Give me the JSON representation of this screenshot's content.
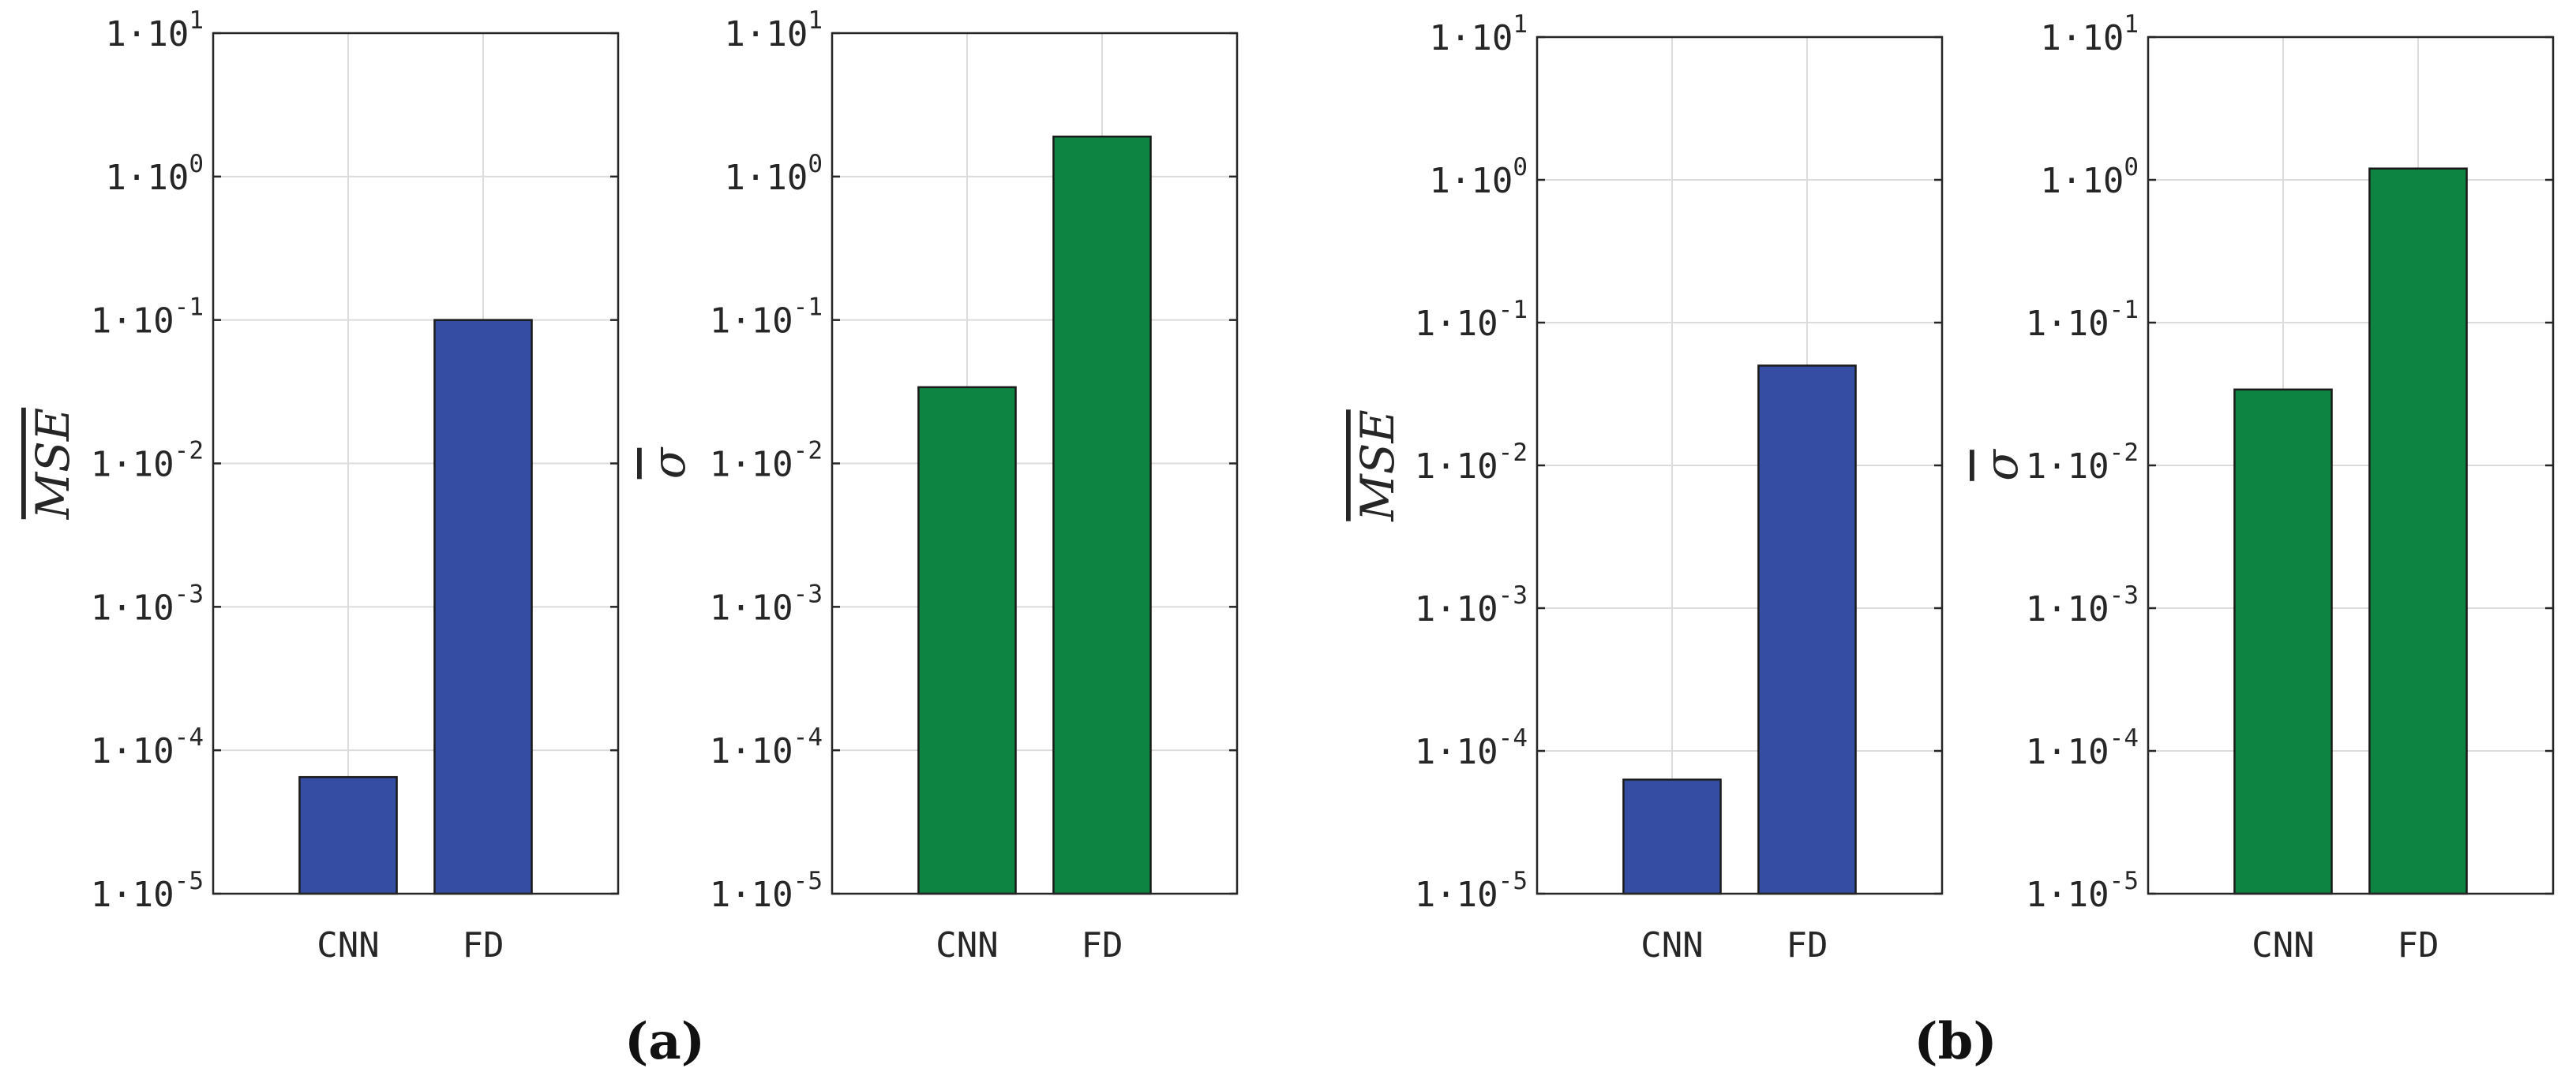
{
  "panels": [
    {
      "label": "(a)"
    },
    {
      "label": "(b)"
    }
  ],
  "colors": {
    "mse": "#354ea4",
    "sigma": "#0e8443"
  },
  "chart_data": [
    {
      "type": "bar",
      "panel": "(a)",
      "categories": [
        "CNN",
        "FD"
      ],
      "values": [
        6.5e-05,
        0.1
      ],
      "ylabel": "MSE",
      "ylabel_overline": true,
      "yscale": "log",
      "ylim": [
        1e-05,
        10
      ],
      "yticks": [
        -5,
        -4,
        -3,
        -2,
        -1,
        0,
        1
      ],
      "tick_base": "1·10",
      "grid": true,
      "color": "#354ea4"
    },
    {
      "type": "bar",
      "panel": "(a)",
      "categories": [
        "CNN",
        "FD"
      ],
      "values": [
        0.034,
        1.9
      ],
      "ylabel": "σ",
      "ylabel_overline": true,
      "yscale": "log",
      "ylim": [
        1e-05,
        10
      ],
      "yticks": [
        -5,
        -4,
        -3,
        -2,
        -1,
        0,
        1
      ],
      "tick_base": "1·10",
      "grid": true,
      "color": "#0e8443"
    },
    {
      "type": "bar",
      "panel": "(b)",
      "categories": [
        "CNN",
        "FD"
      ],
      "values": [
        6.3e-05,
        0.05
      ],
      "ylabel": "MSE",
      "ylabel_overline": true,
      "yscale": "log",
      "ylim": [
        1e-05,
        10
      ],
      "yticks": [
        -5,
        -4,
        -3,
        -2,
        -1,
        0,
        1
      ],
      "tick_base": "1·10",
      "grid": true,
      "color": "#354ea4"
    },
    {
      "type": "bar",
      "panel": "(b)",
      "categories": [
        "CNN",
        "FD"
      ],
      "values": [
        0.034,
        1.2
      ],
      "ylabel": "σ",
      "ylabel_overline": true,
      "yscale": "log",
      "ylim": [
        1e-05,
        10
      ],
      "yticks": [
        -5,
        -4,
        -3,
        -2,
        -1,
        0,
        1
      ],
      "tick_base": "1·10",
      "grid": true,
      "color": "#0e8443"
    }
  ]
}
